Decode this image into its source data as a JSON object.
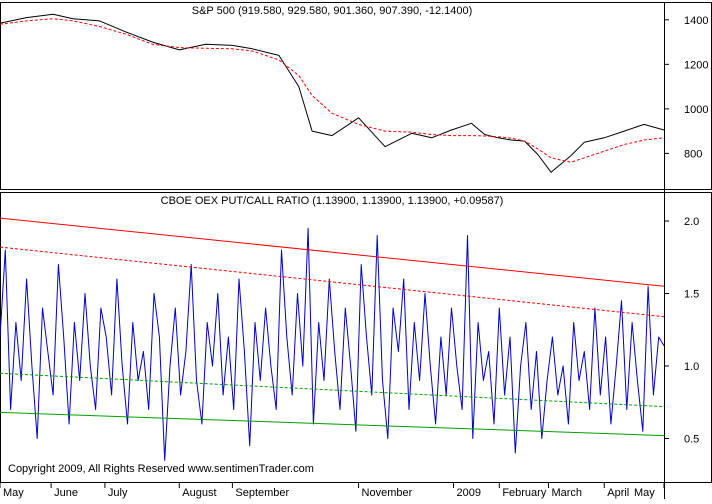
{
  "chart_data": [
    {
      "type": "line",
      "title": "S&P 500 (919.580, 929.580, 901.360, 907.390, -12.1400)",
      "ylim": [
        640,
        1480
      ],
      "y_ticks": [
        800,
        1000,
        1200,
        1400
      ],
      "x": [
        0,
        0.04,
        0.08,
        0.11,
        0.15,
        0.19,
        0.23,
        0.27,
        0.31,
        0.35,
        0.38,
        0.42,
        0.45,
        0.47,
        0.5,
        0.54,
        0.58,
        0.62,
        0.65,
        0.68,
        0.71,
        0.73,
        0.75,
        0.77,
        0.79,
        0.81,
        0.83,
        0.86,
        0.88,
        0.91,
        0.94,
        0.97,
        1.0
      ],
      "series": [
        {
          "name": "",
          "color": "#000000",
          "style": "solid",
          "values": [
            1385,
            1410,
            1425,
            1405,
            1395,
            1345,
            1300,
            1265,
            1290,
            1285,
            1270,
            1240,
            1100,
            900,
            880,
            960,
            830,
            890,
            870,
            905,
            935,
            885,
            870,
            860,
            855,
            795,
            715,
            790,
            850,
            870,
            900,
            930,
            905
          ]
        },
        {
          "name": "",
          "color": "#ff0000",
          "style": "dashed",
          "values": [
            1380,
            1395,
            1405,
            1395,
            1370,
            1335,
            1290,
            1275,
            1272,
            1270,
            1260,
            1220,
            1150,
            1060,
            980,
            930,
            900,
            895,
            885,
            880,
            880,
            878,
            875,
            868,
            855,
            820,
            780,
            760,
            780,
            810,
            840,
            860,
            870
          ]
        }
      ]
    },
    {
      "type": "line",
      "title": "CBOE OEX PUT/CALL RATIO (1.13900, 1.13900, 1.13900, +0.09587)",
      "ylim": [
        0.2,
        2.2
      ],
      "y_ticks": [
        0.5,
        1.0,
        1.5,
        2.0
      ],
      "series": [
        {
          "name": "",
          "color": "#0000cc",
          "style": "solid",
          "values": [
            1.2,
            1.8,
            0.7,
            1.3,
            0.9,
            1.6,
            1.0,
            0.5,
            1.4,
            1.1,
            0.8,
            1.7,
            1.2,
            0.6,
            1.3,
            0.9,
            1.5,
            1.0,
            0.7,
            1.4,
            1.2,
            0.8,
            1.6,
            1.0,
            0.6,
            1.3,
            0.9,
            1.1,
            0.7,
            1.5,
            1.2,
            0.35,
            1.0,
            1.4,
            0.8,
            1.1,
            1.7,
            0.9,
            0.6,
            1.3,
            1.0,
            1.5,
            0.8,
            1.2,
            0.7,
            1.6,
            1.1,
            0.45,
            1.3,
            0.9,
            1.4,
            1.0,
            0.7,
            1.8,
            1.2,
            0.8,
            1.5,
            1.0,
            1.95,
            0.6,
            1.3,
            0.9,
            1.6,
            1.1,
            0.7,
            1.4,
            1.0,
            0.55,
            1.7,
            1.2,
            0.8,
            1.9,
            0.9,
            0.5,
            1.4,
            1.1,
            1.6,
            0.7,
            1.3,
            0.9,
            1.5,
            1.0,
            0.6,
            1.2,
            0.8,
            1.4,
            1.0,
            0.7,
            1.9,
            0.5,
            1.3,
            0.9,
            1.1,
            0.6,
            1.4,
            0.8,
            1.2,
            0.4,
            1.0,
            1.3,
            0.7,
            1.1,
            0.5,
            0.9,
            1.2,
            0.8,
            1.0,
            0.6,
            1.3,
            0.9,
            1.1,
            0.7,
            1.4,
            0.8,
            1.2,
            0.6,
            1.0,
            1.45,
            0.7,
            1.3,
            0.9,
            0.55,
            1.55,
            0.8,
            1.2,
            1.14
          ]
        },
        {
          "name": "",
          "color": "#ff0000",
          "style": "solid",
          "values": [
            2.02,
            1.55
          ]
        },
        {
          "name": "",
          "color": "#ff0000",
          "style": "dashed",
          "values": [
            1.82,
            1.34
          ]
        },
        {
          "name": "",
          "color": "#00a000",
          "style": "dashed",
          "values": [
            0.95,
            0.72
          ]
        },
        {
          "name": "",
          "color": "#00a000",
          "style": "solid",
          "values": [
            0.68,
            0.52
          ]
        }
      ]
    }
  ],
  "x_axis": {
    "labels": [
      "May",
      "June",
      "July",
      "August",
      "September",
      "November",
      "2009",
      "February",
      "March",
      "April",
      "May"
    ],
    "label_x": [
      0.0,
      0.077,
      0.158,
      0.27,
      0.35,
      0.54,
      0.683,
      0.752,
      0.826,
      0.91,
      1.0
    ]
  },
  "copyright": "Copyright 2009, All Rights Reserved  www.sentimenTrader.com"
}
